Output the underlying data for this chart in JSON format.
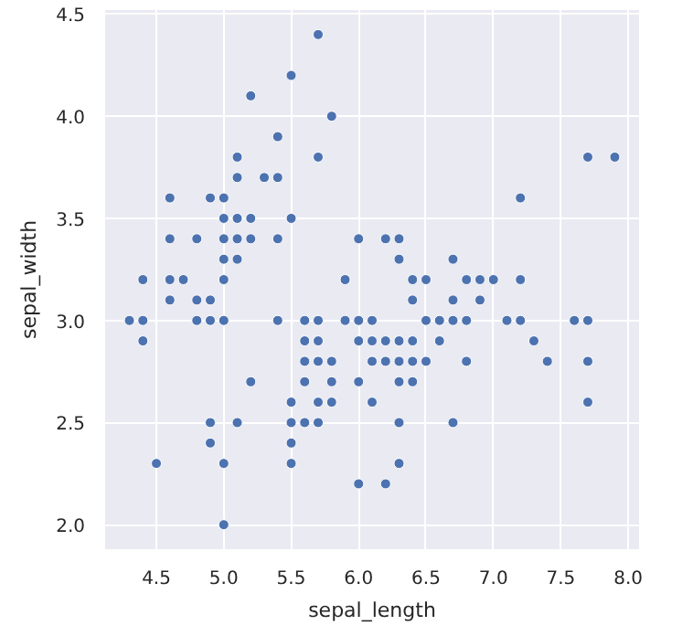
{
  "chart_data": {
    "type": "scatter",
    "xlabel": "sepal_length",
    "ylabel": "sepal_width",
    "marker": "circle",
    "grid": true,
    "xlim": [
      4.12,
      8.08
    ],
    "ylim": [
      1.88,
      4.52
    ],
    "xticks": [
      4.5,
      {
        "value": 5,
        "label": "5.0"
      },
      5.5,
      {
        "value": 6,
        "label": "6.0"
      },
      6.5,
      {
        "value": 7,
        "label": "7.0"
      },
      7.5,
      {
        "value": 8,
        "label": "8.0"
      }
    ],
    "yticks": [
      {
        "value": 2,
        "label": "2.0"
      },
      2.5,
      {
        "value": 3,
        "label": "3.0"
      },
      3.5,
      {
        "value": 4,
        "label": "4.0"
      },
      4.5
    ],
    "series": [
      {
        "color": "#4c72b0",
        "x": [
          4.3,
          4.4,
          4.4,
          4.4,
          4.5,
          4.6,
          4.6,
          4.6,
          4.6,
          4.7,
          4.8,
          4.8,
          4.8,
          4.9,
          4.9,
          4.9,
          4.9,
          4.9,
          5.0,
          5.0,
          5.0,
          5.0,
          5.0,
          5.0,
          5.0,
          5.0,
          5.1,
          5.1,
          5.1,
          5.1,
          5.1,
          5.1,
          5.2,
          5.2,
          5.2,
          5.2,
          5.3,
          5.4,
          5.4,
          5.4,
          5.4,
          5.5,
          5.5,
          5.5,
          5.5,
          5.5,
          5.5,
          5.6,
          5.6,
          5.6,
          5.6,
          5.6,
          5.7,
          5.7,
          5.7,
          5.7,
          5.7,
          5.7,
          5.7,
          5.8,
          5.8,
          5.8,
          5.8,
          5.9,
          5.9,
          6.0,
          6.0,
          6.0,
          6.0,
          6.0,
          6.1,
          6.1,
          6.1,
          6.1,
          6.2,
          6.2,
          6.2,
          6.2,
          6.3,
          6.3,
          6.3,
          6.3,
          6.3,
          6.3,
          6.3,
          6.4,
          6.4,
          6.4,
          6.4,
          6.4,
          6.5,
          6.5,
          6.5,
          6.6,
          6.6,
          6.7,
          6.7,
          6.7,
          6.7,
          6.8,
          6.8,
          6.8,
          6.9,
          6.9,
          7.0,
          7.1,
          7.2,
          7.2,
          7.2,
          7.3,
          7.4,
          7.6,
          7.7,
          7.7,
          7.7,
          7.7,
          7.9
        ],
        "values": [
          3.0,
          2.9,
          3.0,
          3.2,
          2.3,
          3.1,
          3.4,
          3.6,
          3.2,
          3.2,
          3.4,
          3.0,
          3.1,
          3.0,
          3.1,
          3.6,
          2.4,
          2.5,
          3.6,
          3.4,
          3.0,
          3.2,
          3.5,
          3.3,
          2.0,
          2.3,
          3.5,
          3.8,
          3.7,
          3.3,
          3.4,
          2.5,
          3.5,
          3.4,
          4.1,
          2.7,
          3.7,
          3.9,
          3.7,
          3.4,
          3.0,
          4.2,
          3.5,
          2.3,
          2.4,
          2.5,
          2.6,
          2.9,
          3.0,
          2.5,
          2.7,
          2.8,
          4.4,
          3.8,
          2.8,
          2.6,
          3.0,
          2.9,
          2.5,
          4.0,
          2.7,
          2.6,
          2.8,
          3.0,
          3.2,
          2.2,
          2.9,
          2.7,
          3.4,
          3.0,
          2.9,
          2.8,
          3.0,
          2.6,
          2.2,
          2.9,
          2.8,
          3.4,
          3.3,
          2.5,
          2.3,
          2.9,
          2.7,
          2.8,
          3.4,
          3.2,
          2.9,
          2.7,
          2.8,
          3.1,
          2.8,
          3.0,
          3.2,
          2.9,
          3.0,
          3.1,
          3.0,
          2.5,
          3.3,
          2.8,
          3.0,
          3.2,
          3.1,
          3.2,
          3.2,
          3.0,
          3.6,
          3.2,
          3.0,
          2.9,
          2.8,
          3.0,
          3.8,
          2.6,
          2.8,
          3.0,
          3.8
        ]
      }
    ]
  }
}
